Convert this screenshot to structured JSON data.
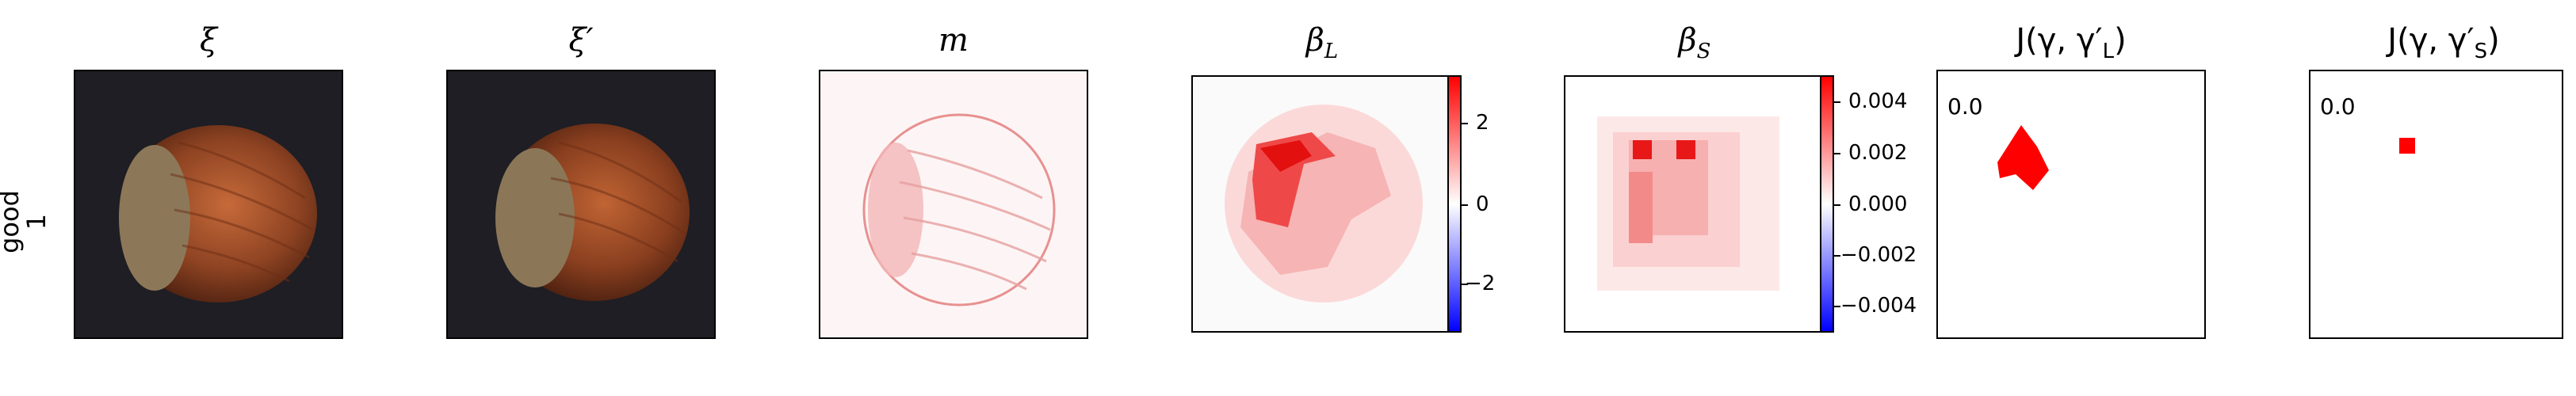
{
  "row_label": {
    "line1": "good",
    "line2": "1"
  },
  "panels": [
    {
      "title": "ξ"
    },
    {
      "title": "ξ′"
    },
    {
      "title": "m"
    },
    {
      "title": "β_L"
    },
    {
      "title": "β_S"
    },
    {
      "title": "J(γ, γ′_L)"
    },
    {
      "title": "J(γ, γ′_S)"
    }
  ],
  "title_parts": {
    "beta_l_main": "β",
    "beta_l_sub": "L",
    "beta_s_main": "β",
    "beta_s_sub": "S",
    "j_l_prefix": "J(γ, γ′",
    "j_l_sub": "L",
    "j_l_suffix": ")",
    "j_s_prefix": "J(γ, γ′",
    "j_s_sub": "S",
    "j_s_suffix": ")"
  },
  "colorbar_l": {
    "ticks": [
      "2",
      "0",
      "−2"
    ],
    "colors": [
      "#0000ff",
      "#ffffff",
      "#ff0000"
    ]
  },
  "colorbar_s": {
    "ticks": [
      "0.004",
      "0.002",
      "0.000",
      "−0.002",
      "−0.004"
    ]
  },
  "scores": {
    "j_l": "0.0",
    "j_s": "0.0"
  },
  "accent": "#ff0000"
}
